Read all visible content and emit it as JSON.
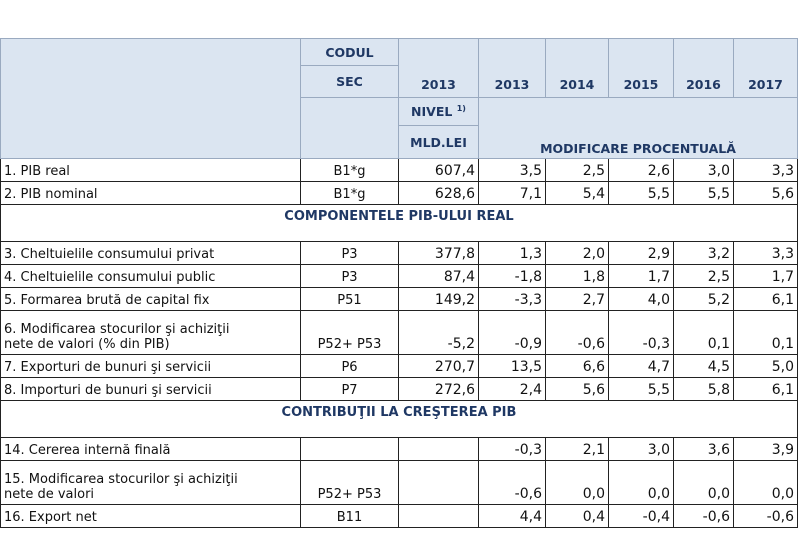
{
  "header": {
    "code": [
      "CODUL",
      "SEC"
    ],
    "years": [
      "2013",
      "2013",
      "2014",
      "2015",
      "2016",
      "2017"
    ],
    "level": "NIVEL",
    "level_note": "1)",
    "unit": "MLD.LEI",
    "change": "MODIFICARE PROCENTUALĂ"
  },
  "rows": [
    {
      "label": [
        "1. PIB real"
      ],
      "code": "B1*g",
      "level": "607,4",
      "values": [
        "3,5",
        "2,5",
        "2,6",
        "3,0",
        "3,3"
      ]
    },
    {
      "label": [
        "2. PIB nominal"
      ],
      "code": "B1*g",
      "level": "628,6",
      "values": [
        "7,1",
        "5,4",
        "5,5",
        "5,5",
        "5,6"
      ]
    },
    {
      "section": "COMPONENTELE PIB-ULUI REAL"
    },
    {
      "label": [
        "3. Cheltuielile consumului privat"
      ],
      "code": "P3",
      "level": "377,8",
      "values": [
        "1,3",
        "2,0",
        "2,9",
        "3,2",
        "3,3"
      ]
    },
    {
      "label": [
        "4. Cheltuielile consumului public"
      ],
      "code": "P3",
      "level": "87,4",
      "values": [
        "-1,8",
        "1,8",
        "1,7",
        "2,5",
        "1,7"
      ]
    },
    {
      "label": [
        "5. Formarea brută de capital fix"
      ],
      "code": "P51",
      "level": "149,2",
      "values": [
        "-3,3",
        "2,7",
        "4,0",
        "5,2",
        "6,1"
      ]
    },
    {
      "label": [
        "6. Modificarea stocurilor şi  achiziţii",
        "nete de valori (% din PIB)"
      ],
      "code": "P52+ P53",
      "level": "-5,2",
      "values": [
        "-0,9",
        "-0,6",
        "-0,3",
        "0,1",
        "0,1"
      ]
    },
    {
      "label": [
        "7. Exporturi de bunuri şi servicii"
      ],
      "code": "P6",
      "level": "270,7",
      "values": [
        "13,5",
        "6,6",
        "4,7",
        "4,5",
        "5,0"
      ]
    },
    {
      "label": [
        "8. Importuri de bunuri şi  servicii"
      ],
      "code": "P7",
      "level": "272,6",
      "values": [
        "2,4",
        "5,6",
        "5,5",
        "5,8",
        "6,1"
      ]
    },
    {
      "section": "CONTRIBUŢII LA CREŞTEREA PIB"
    },
    {
      "label": [
        "14. Cererea internă finală"
      ],
      "values": [
        "-0,3",
        "2,1",
        "3,0",
        "3,6",
        "3,9"
      ]
    },
    {
      "label": [
        "15. Modificarea stocurilor şi  achiziţii",
        "nete de valori"
      ],
      "code": "P52+ P53",
      "values": [
        "-0,6",
        "0,0",
        "0,0",
        "0,0",
        "0,0"
      ]
    },
    {
      "label": [
        "16. Export net"
      ],
      "code": "B11",
      "values": [
        "4,4",
        "0,4",
        "-0,4",
        "-0,6",
        "-0,6"
      ]
    }
  ]
}
